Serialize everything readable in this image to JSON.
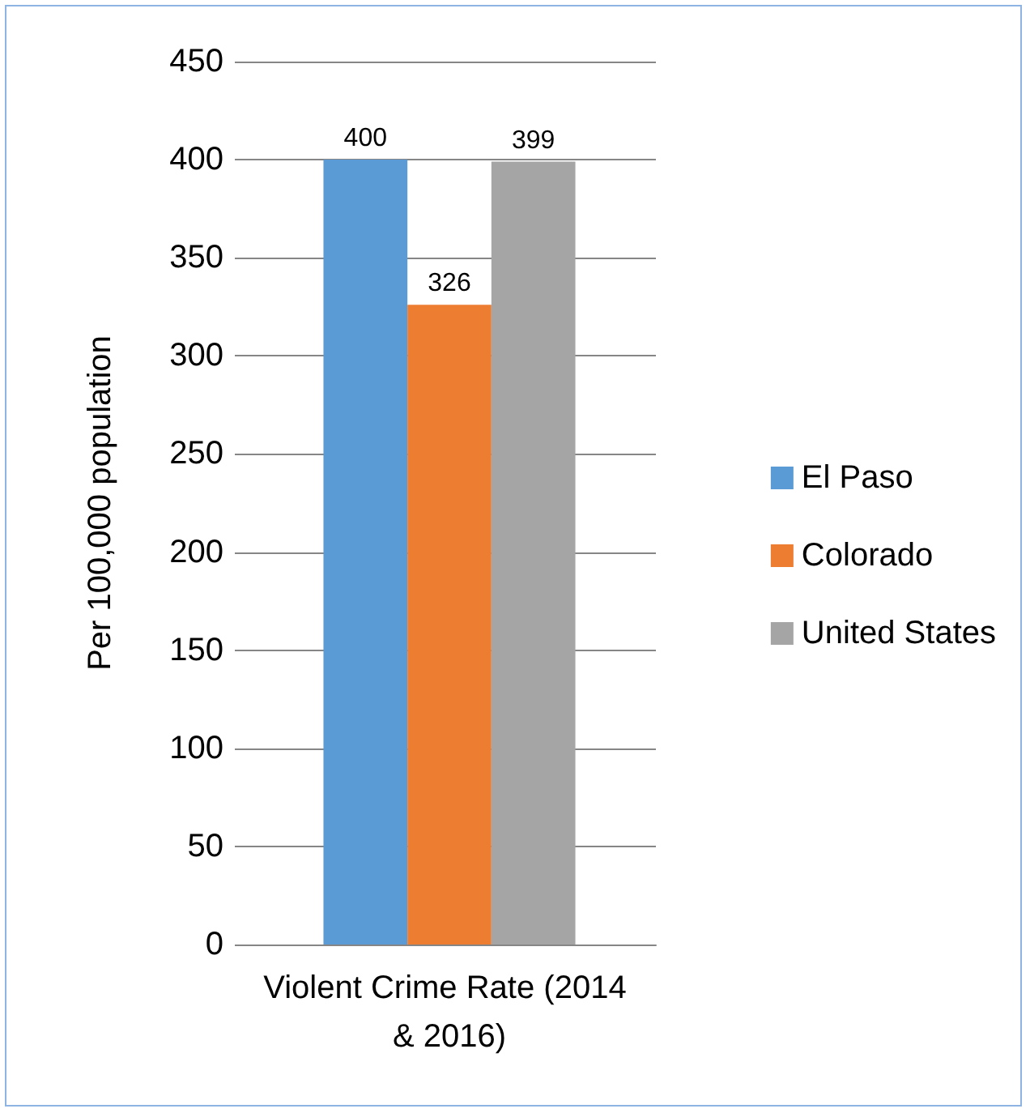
{
  "chart_data": {
    "type": "bar",
    "categories": [
      "Violent Crime Rate (2014 & 2016)"
    ],
    "ylabel": "Per 100,000 population",
    "series": [
      {
        "name": "El Paso",
        "color": "#5b9bd5",
        "values": [
          400
        ]
      },
      {
        "name": "Colorado",
        "color": "#ed7d31",
        "values": [
          326
        ]
      },
      {
        "name": "United States",
        "color": "#a5a5a5",
        "values": [
          399
        ]
      }
    ],
    "ylim": [
      0,
      450
    ],
    "yticks": [
      0,
      50,
      100,
      150,
      200,
      250,
      300,
      350,
      400,
      450
    ],
    "grid": "y",
    "legend": "right",
    "data_labels": true
  }
}
